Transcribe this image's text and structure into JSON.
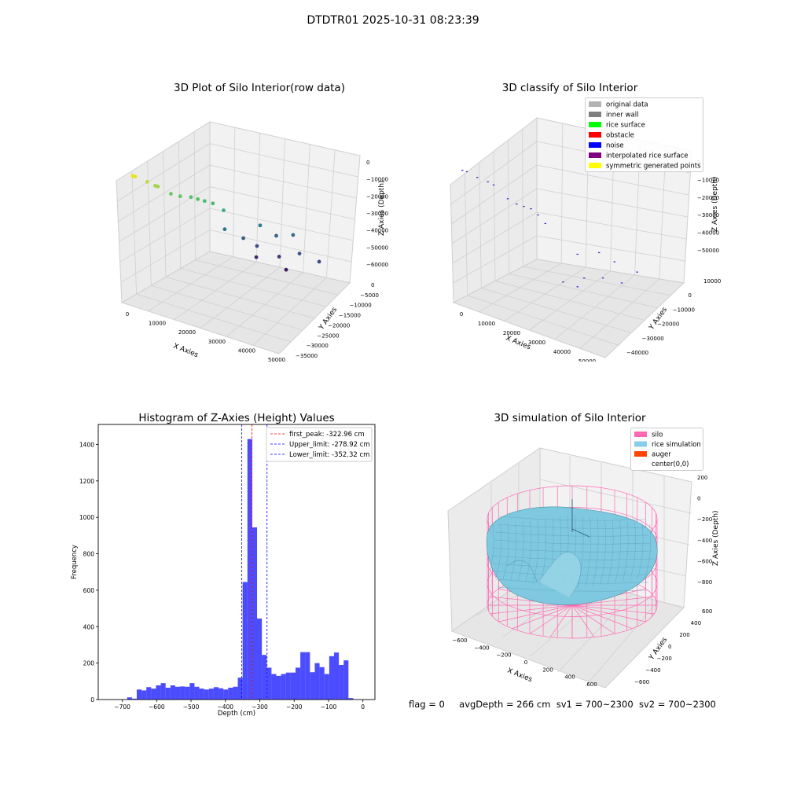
{
  "figure": {
    "suptitle": "DTDTR01 2025-10-31 08:23:39",
    "status": {
      "flag": "flag = 0",
      "avg_depth": "avgDepth = 266 cm",
      "sv1": "sv1 = 700~2300",
      "sv2": "sv2 = 700~2300"
    }
  },
  "chart_data": [
    {
      "type": "scatter",
      "projection": "3d",
      "title": "3D Plot of Silo Interior(row data)",
      "xlabel": "X Axies",
      "ylabel": "Y Axies",
      "zlabel": "Z Axies (Depth)",
      "x_ticks": [
        "0",
        "10000",
        "20000",
        "30000",
        "40000",
        "50000"
      ],
      "y_ticks": [
        "0",
        "−5000",
        "−10000",
        "−15000",
        "−20000",
        "−25000",
        "−30000",
        "−35000"
      ],
      "z_ticks": [
        "0",
        "−10000",
        "−20000",
        "−30000",
        "−40000",
        "−50000",
        "−60000"
      ],
      "xlim": [
        0,
        55000
      ],
      "ylim": [
        -35000,
        0
      ],
      "zlim": [
        -65000,
        0
      ],
      "grid": true,
      "color_map": "viridis by depth",
      "points": [
        {
          "x": 2000,
          "y": -33000,
          "z": -2000
        },
        {
          "x": 3000,
          "y": -33500,
          "z": -1500
        },
        {
          "x": 2500,
          "y": -32500,
          "z": -2500
        },
        {
          "x": 4500,
          "y": -30000,
          "z": -6000
        },
        {
          "x": 5500,
          "y": -28000,
          "z": -9000
        },
        {
          "x": 6000,
          "y": -27500,
          "z": -9500
        },
        {
          "x": 7500,
          "y": -24000,
          "z": -15000
        },
        {
          "x": 9000,
          "y": -22000,
          "z": -17000
        },
        {
          "x": 11000,
          "y": -20000,
          "z": -18000
        },
        {
          "x": 12500,
          "y": -19000,
          "z": -19000
        },
        {
          "x": 14000,
          "y": -18000,
          "z": -20000
        },
        {
          "x": 16000,
          "y": -17000,
          "z": -21000
        },
        {
          "x": 18000,
          "y": -15000,
          "z": -25000
        },
        {
          "x": 22000,
          "y": -5000,
          "z": -38000
        },
        {
          "x": 25000,
          "y": -2000,
          "z": -44000
        },
        {
          "x": 30000,
          "y": -1000,
          "z": -42000
        },
        {
          "x": 34000,
          "y": -3000,
          "z": -48000
        },
        {
          "x": 40000,
          "y": -2000,
          "z": -50000
        },
        {
          "x": 14000,
          "y": -10000,
          "z": -40000
        },
        {
          "x": 17000,
          "y": -6000,
          "z": -46000
        },
        {
          "x": 20000,
          "y": -4000,
          "z": -50000
        },
        {
          "x": 26000,
          "y": -2000,
          "z": -54000
        },
        {
          "x": 18000,
          "y": -2000,
          "z": -58000
        },
        {
          "x": 28000,
          "y": -1500,
          "z": -60000
        }
      ]
    },
    {
      "type": "scatter",
      "projection": "3d",
      "title": "3D classify of Silo Interior",
      "xlabel": "X Axies",
      "ylabel": "Y Axies",
      "zlabel": "Z Axies (Depth)",
      "x_ticks": [
        "0",
        "10000",
        "20000",
        "30000",
        "40000",
        "50000"
      ],
      "y_ticks": [
        "10000",
        "0",
        "−10000",
        "−20000",
        "−30000",
        "−40000"
      ],
      "z_ticks": [
        "0",
        "−10000",
        "−20000",
        "−30000",
        "−40000",
        "−50000"
      ],
      "xlim": [
        0,
        55000
      ],
      "ylim": [
        -40000,
        10000
      ],
      "zlim": [
        -55000,
        0
      ],
      "grid": true,
      "legend_position": "top-right",
      "legend": [
        {
          "label": "original data",
          "color": "#b3b3b3"
        },
        {
          "label": "inner wall",
          "color": "#808080"
        },
        {
          "label": "rice surface",
          "color": "#00ff00"
        },
        {
          "label": "obstacle",
          "color": "#ff0000"
        },
        {
          "label": "noise",
          "color": "#0000ff"
        },
        {
          "label": "interpolated rice surface",
          "color": "#800080"
        },
        {
          "label": "symmetric generated points",
          "color": "#ffff00"
        }
      ],
      "points": [
        {
          "x": 2000,
          "y": -38000,
          "z": -2000
        },
        {
          "x": 3000,
          "y": -37000,
          "z": -2500
        },
        {
          "x": 5000,
          "y": -34000,
          "z": -5000
        },
        {
          "x": 7000,
          "y": -31000,
          "z": -7000
        },
        {
          "x": 8500,
          "y": -30000,
          "z": -8000
        },
        {
          "x": 10000,
          "y": -24000,
          "z": -15000
        },
        {
          "x": 12000,
          "y": -22000,
          "z": -17000
        },
        {
          "x": 14000,
          "y": -21000,
          "z": -17500
        },
        {
          "x": 16000,
          "y": -20000,
          "z": -18000
        },
        {
          "x": 18000,
          "y": -19000,
          "z": -20000
        },
        {
          "x": 20000,
          "y": -18000,
          "z": -23000
        },
        {
          "x": 22000,
          "y": -2000,
          "z": -40000
        },
        {
          "x": 28000,
          "y": 1000,
          "z": -38000
        },
        {
          "x": 33000,
          "y": 2000,
          "z": -40000
        },
        {
          "x": 40000,
          "y": 4000,
          "z": -42000
        },
        {
          "x": 25000,
          "y": -3000,
          "z": -48000
        },
        {
          "x": 30000,
          "y": 0,
          "z": -47000
        },
        {
          "x": 35000,
          "y": 3000,
          "z": -48000
        },
        {
          "x": 18000,
          "y": -4000,
          "z": -52000
        },
        {
          "x": 22000,
          "y": -2000,
          "z": -53000
        }
      ]
    },
    {
      "type": "bar",
      "subtype": "histogram",
      "title": "Histogram of Z-Axies (Height) Values",
      "xlabel": "Depth (cm)",
      "ylabel": "Frequency",
      "xlim": [
        -770,
        35
      ],
      "ylim": [
        0,
        1510
      ],
      "x_ticks": [
        -700,
        -600,
        -500,
        -400,
        -300,
        -200,
        -100,
        0
      ],
      "y_ticks": [
        0,
        200,
        400,
        600,
        800,
        1000,
        1200,
        1400
      ],
      "bar_color": "#0000ff",
      "bin_width": 14,
      "bins": [
        {
          "x0": -686,
          "x1": -672,
          "v": 12
        },
        {
          "x0": -672,
          "x1": -658,
          "v": 5
        },
        {
          "x0": -658,
          "x1": -644,
          "v": 55
        },
        {
          "x0": -644,
          "x1": -630,
          "v": 50
        },
        {
          "x0": -630,
          "x1": -616,
          "v": 68
        },
        {
          "x0": -616,
          "x1": -602,
          "v": 60
        },
        {
          "x0": -602,
          "x1": -588,
          "v": 78
        },
        {
          "x0": -588,
          "x1": -574,
          "v": 90
        },
        {
          "x0": -574,
          "x1": -560,
          "v": 65
        },
        {
          "x0": -560,
          "x1": -546,
          "v": 78
        },
        {
          "x0": -546,
          "x1": -532,
          "v": 70
        },
        {
          "x0": -532,
          "x1": -518,
          "v": 72
        },
        {
          "x0": -518,
          "x1": -504,
          "v": 70
        },
        {
          "x0": -504,
          "x1": -490,
          "v": 90
        },
        {
          "x0": -490,
          "x1": -476,
          "v": 70
        },
        {
          "x0": -476,
          "x1": -462,
          "v": 60
        },
        {
          "x0": -462,
          "x1": -448,
          "v": 55
        },
        {
          "x0": -448,
          "x1": -434,
          "v": 60
        },
        {
          "x0": -434,
          "x1": -420,
          "v": 68
        },
        {
          "x0": -420,
          "x1": -406,
          "v": 62
        },
        {
          "x0": -406,
          "x1": -392,
          "v": 55
        },
        {
          "x0": -392,
          "x1": -378,
          "v": 65
        },
        {
          "x0": -378,
          "x1": -364,
          "v": 70
        },
        {
          "x0": -364,
          "x1": -350,
          "v": 120
        },
        {
          "x0": -350,
          "x1": -336,
          "v": 645
        },
        {
          "x0": -336,
          "x1": -322,
          "v": 1430
        },
        {
          "x0": -322,
          "x1": -308,
          "v": 945
        },
        {
          "x0": -308,
          "x1": -294,
          "v": 445
        },
        {
          "x0": -294,
          "x1": -280,
          "v": 245
        },
        {
          "x0": -280,
          "x1": -266,
          "v": 175
        },
        {
          "x0": -266,
          "x1": -252,
          "v": 140
        },
        {
          "x0": -252,
          "x1": -238,
          "v": 130
        },
        {
          "x0": -238,
          "x1": -224,
          "v": 140
        },
        {
          "x0": -224,
          "x1": -210,
          "v": 148
        },
        {
          "x0": -210,
          "x1": -196,
          "v": 148
        },
        {
          "x0": -196,
          "x1": -182,
          "v": 175
        },
        {
          "x0": -182,
          "x1": -168,
          "v": 260
        },
        {
          "x0": -168,
          "x1": -154,
          "v": 260
        },
        {
          "x0": -154,
          "x1": -140,
          "v": 150
        },
        {
          "x0": -140,
          "x1": -126,
          "v": 200
        },
        {
          "x0": -126,
          "x1": -112,
          "v": 178
        },
        {
          "x0": -112,
          "x1": -98,
          "v": 140
        },
        {
          "x0": -98,
          "x1": -84,
          "v": 238
        },
        {
          "x0": -84,
          "x1": -70,
          "v": 258
        },
        {
          "x0": -70,
          "x1": -56,
          "v": 190
        },
        {
          "x0": -56,
          "x1": -42,
          "v": 215
        },
        {
          "x0": -42,
          "x1": -28,
          "v": 8
        }
      ],
      "vlines": [
        {
          "label": "first_peak: -322.96 cm",
          "x": -322.96,
          "color": "#ff0000"
        },
        {
          "label": "Upper_limit: -278.92 cm",
          "x": -278.92,
          "color": "#0000ff"
        },
        {
          "label": "Lower_limit: -352.32 cm",
          "x": -352.32,
          "color": "#0000ff"
        }
      ],
      "legend_position": "top-right"
    },
    {
      "type": "other",
      "subtype": "3d-surface",
      "title": "3D simulation of Silo Interior",
      "xlabel": "X Axies",
      "ylabel": "Y Axies",
      "zlabel": "Z Axies (Depth)",
      "x_ticks": [
        "−600",
        "−400",
        "−200",
        "0",
        "200",
        "400",
        "600"
      ],
      "y_ticks": [
        "−600",
        "−400",
        "−200",
        "0",
        "200",
        "400",
        "600"
      ],
      "z_ticks": [
        "200",
        "0",
        "−200",
        "−400",
        "−600",
        "−800"
      ],
      "grid": true,
      "legend_position": "top-right",
      "legend": [
        {
          "label": "silo",
          "color": "#ff69b4"
        },
        {
          "label": "rice simulation",
          "color": "#87ceeb"
        },
        {
          "label": "auger",
          "color": "#ff4500"
        },
        {
          "label": "center(0,0)",
          "color": "#ffffff"
        }
      ]
    }
  ]
}
